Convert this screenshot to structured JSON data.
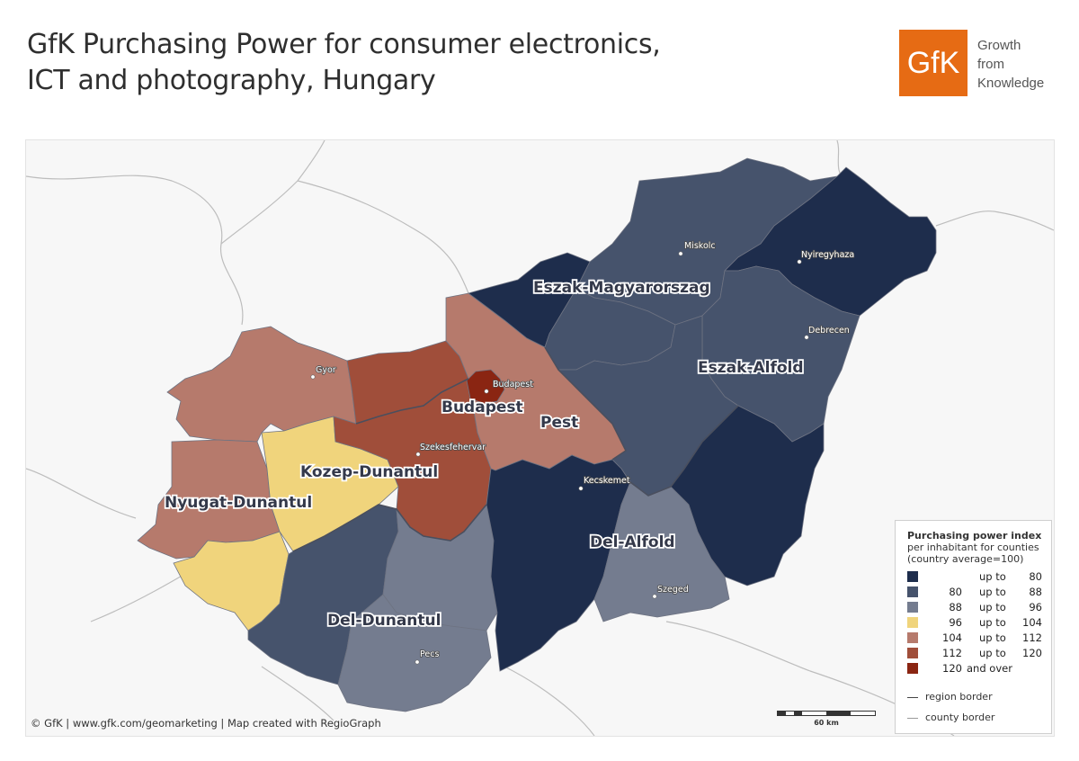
{
  "title_lines": [
    "GfK Purchasing Power for consumer electronics,",
    "ICT and photography, Hungary"
  ],
  "logo": {
    "text": "GfK",
    "tagline": [
      "Growth",
      "from",
      "Knowledge"
    ],
    "color": "#e66b14"
  },
  "regions": {
    "eszak_magyarorszag": "Eszak-Magyarorszag",
    "eszak_alfold": "Eszak-Alfold",
    "budapest": "Budapest",
    "pest": "Pest",
    "kozep_dunantul": "Kozep-Dunantul",
    "nyugat_dunantul": "Nyugat-Dunantul",
    "del_alfold": "Del-Alfold",
    "del_dunantul": "Del-Dunantul"
  },
  "cities": {
    "miskolc": "Miskolc",
    "nyiregyhaza": "Nyiregyhaza",
    "debrecen": "Debrecen",
    "gyor": "Gyor",
    "budapest": "Budapest",
    "szekesfehervar": "Szekesfehervar",
    "kecskemet": "Kecskemet",
    "szeged": "Szeged",
    "pecs": "Pecs"
  },
  "legend": {
    "title": "Purchasing power index",
    "subtitle_lines": [
      "per inhabitant for counties",
      "(country average=100)"
    ],
    "classes": [
      {
        "from": "",
        "word": "up to",
        "to": "80",
        "color": "#1e2d4c"
      },
      {
        "from": "80",
        "word": "up to",
        "to": "88",
        "color": "#46536c"
      },
      {
        "from": "88",
        "word": "up to",
        "to": "96",
        "color": "#747c8f"
      },
      {
        "from": "96",
        "word": "up to",
        "to": "104",
        "color": "#f0d47c"
      },
      {
        "from": "104",
        "word": "up to",
        "to": "112",
        "color": "#b67a6c"
      },
      {
        "from": "112",
        "word": "up to",
        "to": "120",
        "color": "#a04e3a"
      },
      {
        "from": "120",
        "word": "and over",
        "to": "",
        "color": "#8a2512"
      }
    ],
    "region_border": "region border",
    "county_border": "county border"
  },
  "scale_label": "60 km",
  "credit": "© GfK | www.gfk.com/geomarketing | Map created with RegioGraph"
}
